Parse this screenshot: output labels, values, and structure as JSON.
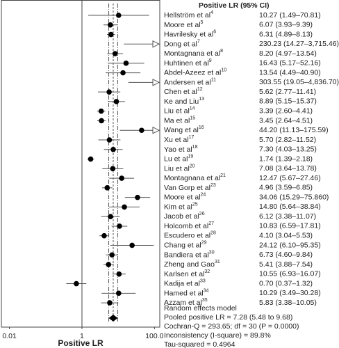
{
  "chart_data": {
    "type": "forest",
    "column_header": "Positive LR (95% CI)",
    "x_label": "Positive LR",
    "log_x": true,
    "color": "#000000",
    "xlim": [
      0.006,
      140
    ],
    "xticks": [
      0.01,
      1,
      {
        "value": 100,
        "label": "100.0"
      }
    ],
    "categories": [
      "Hellström et al",
      "Moore et al",
      "Havrilesky et al",
      "Dong et al",
      "Montagnana et al",
      "Huhtinen et al",
      "Abdel-Azeez et al",
      "Andersen et al",
      "Chen et al",
      "Ke and Liu",
      "Liu et al",
      "Ma et al",
      "Wang et al",
      "Xu et al",
      "Yao et al",
      "Lu et al",
      "Liu et al",
      "Montagnana et al",
      "Van Gorp et al",
      "Moore et al",
      "Kim et al",
      "Jacob et al",
      "Holcomb et al",
      "Escudero et al",
      "Chang et al",
      "Bandiera et al",
      "Zheng and Gao",
      "Karlsen et al",
      "Kadija et al",
      "Hamed et al",
      "Azzam et al"
    ],
    "refs": [
      "4",
      "5",
      "6",
      "7",
      "8",
      "9",
      "10",
      "11",
      "12",
      "13",
      "14",
      "15",
      "16",
      "17",
      "18",
      "19",
      "20",
      "21",
      "23",
      "24",
      "25",
      "26",
      "27",
      "28",
      "29",
      "30",
      "31",
      "32",
      "33",
      "34",
      "35"
    ],
    "values": [
      10.27,
      6.07,
      6.31,
      230.23,
      8.2,
      16.43,
      13.54,
      303.55,
      5.62,
      8.89,
      3.39,
      3.45,
      44.2,
      5.7,
      7.3,
      1.74,
      7.08,
      12.47,
      4.96,
      34.06,
      14.8,
      6.12,
      10.83,
      4.1,
      24.12,
      6.73,
      5.41,
      10.55,
      0.7,
      10.29,
      5.83
    ],
    "lower": [
      1.49,
      3.93,
      4.89,
      14.27,
      4.97,
      5.17,
      4.49,
      19.05,
      2.77,
      5.15,
      2.6,
      2.64,
      11.13,
      2.82,
      4.03,
      1.39,
      3.64,
      5.67,
      3.59,
      15.29,
      5.64,
      3.38,
      6.59,
      3.04,
      6.1,
      4.6,
      3.88,
      6.93,
      0.37,
      3.49,
      3.38
    ],
    "upper": [
      70.81,
      9.39,
      8.13,
      3715.46,
      13.54,
      52.16,
      40.9,
      4836.7,
      11.41,
      15.37,
      4.41,
      4.51,
      175.59,
      11.52,
      13.25,
      2.18,
      13.78,
      27.46,
      6.85,
      75.86,
      38.84,
      11.07,
      17.81,
      5.53,
      95.35,
      9.84,
      7.54,
      16.07,
      1.32,
      30.28,
      10.05
    ],
    "value_labels": [
      "10.27 (1.49–70.81)",
      "6.07 (3.93–9.39)",
      "6.31 (4.89–8.13)",
      "230.23 (14.27–3,715.46)",
      "8.20 (4.97–13.54)",
      "16.43 (5.17–52.16)",
      "13.54 (4.49–40.90)",
      "303.55 (19.05–4,836.70)",
      "5.62 (2.77–11.41)",
      "8.89 (5.15–15.37)",
      "3.39 (2.60–4.41)",
      "3.45 (2.64–4.51)",
      "44.20 (11.13–175.59)",
      "5.70 (2.82–11.52)",
      "7.30 (4.03–13.25)",
      "1.74 (1.39–2.18)",
      "7.08 (3.64–13.78)",
      "12.47 (5.67–27.46)",
      "4.96 (3.59–6.85)",
      "34.06 (15.29–75.860)",
      "14.80 (5.64–38.84)",
      "6.12 (3.38–11.07)",
      "10.83 (6.59–17.81)",
      "4.10 (3.04–5.53)",
      "24.12 (6.10–95.35)",
      "6.73 (4.60–9.84)",
      "5.41 (3.88–7.54)",
      "10.55 (6.93–16.07)",
      "0.70 (0.37–1.32)",
      "10.29 (3.49–30.28)",
      "5.83 (3.38–10.05)"
    ],
    "pooled": {
      "value": 7.28,
      "lower": 5.48,
      "upper": 9.68,
      "label": "Pooled positive LR = 7.28 (5.48 to 9.68)"
    },
    "notes": [
      "Random effects model",
      "Cochran-Q = 293.65; df = 30 (P = 0.0000)",
      "Inconsistency (I-square) = 89.8%",
      "Tau-squared = 0.4964"
    ]
  }
}
